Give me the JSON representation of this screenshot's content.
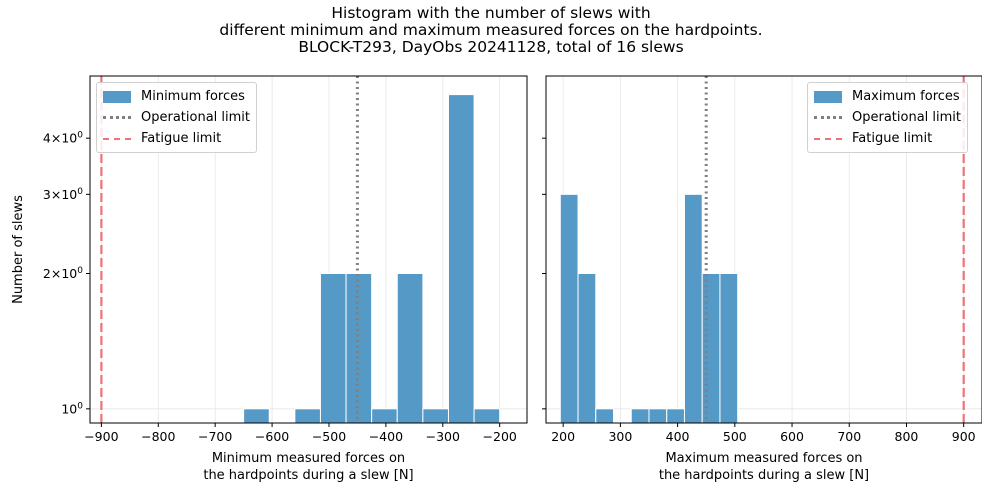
{
  "title_lines": [
    "Histogram with the number of slews with",
    "different minimum and maximum measured forces on the hardpoints.",
    "BLOCK-T293, DayObs 20241128, total of 16 slews"
  ],
  "colors": {
    "bars": "#5599c7",
    "bar_edge": "#ffffff",
    "operational": "#808080",
    "fatigue": "#f07178",
    "grid": "#e6e6e6"
  },
  "chart_data": [
    {
      "type": "bar",
      "panel": "left",
      "xlabel": [
        "Minimum measured forces on",
        "the hardpoints during a slew [N]"
      ],
      "ylabel": "Number of slews",
      "yscale": "log",
      "xlim": [
        -920,
        -152
      ],
      "ylim": [
        0.93,
        5.5
      ],
      "xticks": [
        -900,
        -800,
        -700,
        -600,
        -500,
        -400,
        -300,
        -200
      ],
      "xtick_labels": [
        "−900",
        "−800",
        "−700",
        "−600",
        "−500",
        "−400",
        "−300",
        "−200"
      ],
      "yticks": [
        1,
        2,
        3,
        4
      ],
      "ytick_labels": [
        [
          "10",
          "0"
        ],
        [
          "2×10",
          "0"
        ],
        [
          "3×10",
          "0"
        ],
        [
          "4×10",
          "0"
        ]
      ],
      "bins": [
        {
          "x0": -650,
          "x1": -605,
          "count": 1
        },
        {
          "x0": -560,
          "x1": -515,
          "count": 1
        },
        {
          "x0": -515,
          "x1": -470,
          "count": 2
        },
        {
          "x0": -470,
          "x1": -425,
          "count": 2
        },
        {
          "x0": -425,
          "x1": -380,
          "count": 1
        },
        {
          "x0": -380,
          "x1": -335,
          "count": 2
        },
        {
          "x0": -335,
          "x1": -290,
          "count": 1
        },
        {
          "x0": -290,
          "x1": -245,
          "count": 5
        },
        {
          "x0": -245,
          "x1": -200,
          "count": 1
        }
      ],
      "operational_limit": -450,
      "fatigue_limit": -900,
      "legend": [
        "Minimum forces",
        "Operational limit",
        "Fatigue limit"
      ],
      "legend_position": "top-left"
    },
    {
      "type": "bar",
      "panel": "right",
      "xlabel": [
        "Maximum measured forces on",
        "the hardpoints during a slew [N]"
      ],
      "yscale": "log",
      "xlim": [
        170,
        932
      ],
      "ylim": [
        0.93,
        5.5
      ],
      "xticks": [
        200,
        300,
        400,
        500,
        600,
        700,
        800,
        900
      ],
      "xtick_labels": [
        "200",
        "300",
        "400",
        "500",
        "600",
        "700",
        "800",
        "900"
      ],
      "bins": [
        {
          "x0": 195,
          "x1": 226,
          "count": 3
        },
        {
          "x0": 226,
          "x1": 257,
          "count": 2
        },
        {
          "x0": 257,
          "x1": 288,
          "count": 1
        },
        {
          "x0": 319,
          "x1": 350,
          "count": 1
        },
        {
          "x0": 350,
          "x1": 381,
          "count": 1
        },
        {
          "x0": 381,
          "x1": 412,
          "count": 1
        },
        {
          "x0": 412,
          "x1": 443,
          "count": 3
        },
        {
          "x0": 443,
          "x1": 474,
          "count": 2
        },
        {
          "x0": 474,
          "x1": 505,
          "count": 2
        }
      ],
      "operational_limit": 450,
      "fatigue_limit": 900,
      "legend": [
        "Maximum forces",
        "Operational limit",
        "Fatigue limit"
      ],
      "legend_position": "top-right"
    }
  ]
}
